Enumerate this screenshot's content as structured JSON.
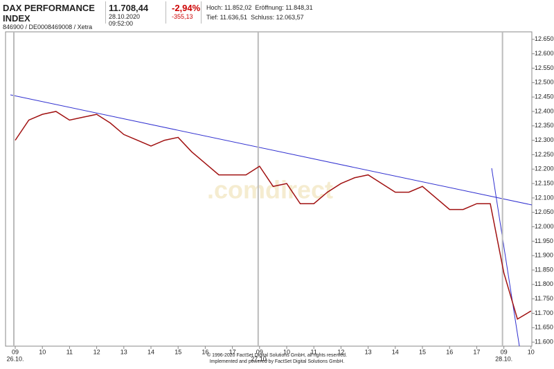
{
  "header": {
    "title": "DAX PERFORMANCE INDEX",
    "subtitle": "846900 / DE0008469008 / Xetra",
    "price": "11.708,44",
    "timestamp": "28.10.2020 09:52:00",
    "change_pct": "-2,94%",
    "change_abs": "-355,13",
    "high": "Hoch: 11.852,02",
    "open": "Eröffnung: 11.848,31",
    "low": "Tief: 11.636,51",
    "close": "Schluss: 12.063,57"
  },
  "chart_data": {
    "type": "line",
    "watermark": ".comdirect",
    "categories": [
      "09",
      null,
      "10",
      null,
      "11",
      null,
      "12",
      null,
      "13",
      null,
      "14",
      null,
      "15",
      null,
      "16",
      null,
      "17",
      null,
      "09",
      null,
      "10",
      null,
      "11",
      null,
      "12",
      null,
      "13",
      null,
      "14",
      null,
      "15",
      null,
      "16",
      null,
      "17",
      null,
      "09",
      null,
      "10"
    ],
    "days": [
      "26.10.",
      "27.10.",
      "28.10."
    ],
    "series": [
      {
        "color": "#a01010",
        "values": [
          12300,
          12370,
          12390,
          12400,
          12370,
          12380,
          12390,
          12360,
          12320,
          12300,
          12280,
          12300,
          12310,
          12260,
          12220,
          12180,
          12180,
          12180,
          12210,
          12140,
          12150,
          12080,
          12080,
          12120,
          12150,
          12170,
          12180,
          12150,
          12120,
          12120,
          12140,
          12100,
          12060,
          12060,
          12080,
          12080,
          11840,
          11680,
          11708
        ]
      }
    ],
    "ylim": [
      11586,
      12676
    ],
    "yticks": [
      {
        "value": 11600,
        "label": "11.600"
      },
      {
        "value": 11650,
        "label": "11.650"
      },
      {
        "value": 11700,
        "label": "11.700"
      },
      {
        "value": 11750,
        "label": "11.750"
      },
      {
        "value": 11800,
        "label": "11.800"
      },
      {
        "value": 11850,
        "label": "11.850"
      },
      {
        "value": 11900,
        "label": "11.900"
      },
      {
        "value": 11950,
        "label": "11.950"
      },
      {
        "value": 12000,
        "label": "12.000"
      },
      {
        "value": 12050,
        "label": "12.050"
      },
      {
        "value": 12100,
        "label": "12.100"
      },
      {
        "value": 12150,
        "label": "12.150"
      },
      {
        "value": 12200,
        "label": "12.200"
      },
      {
        "value": 12250,
        "label": "12.250"
      },
      {
        "value": 12300,
        "label": "12.300"
      },
      {
        "value": 12350,
        "label": "12.350"
      },
      {
        "value": 12400,
        "label": "12.400"
      },
      {
        "value": 12450,
        "label": "12.450"
      },
      {
        "value": 12500,
        "label": "12.500"
      },
      {
        "value": 12550,
        "label": "12.550"
      },
      {
        "value": 12600,
        "label": "12.600"
      },
      {
        "value": 12650,
        "label": "12.650"
      }
    ],
    "footer": [
      "© 1996-2020 FactSet Digital Solutions GmbH, all rights reserved.",
      "Implemented and powered by FactSet Digital Solutions GmbH."
    ]
  }
}
